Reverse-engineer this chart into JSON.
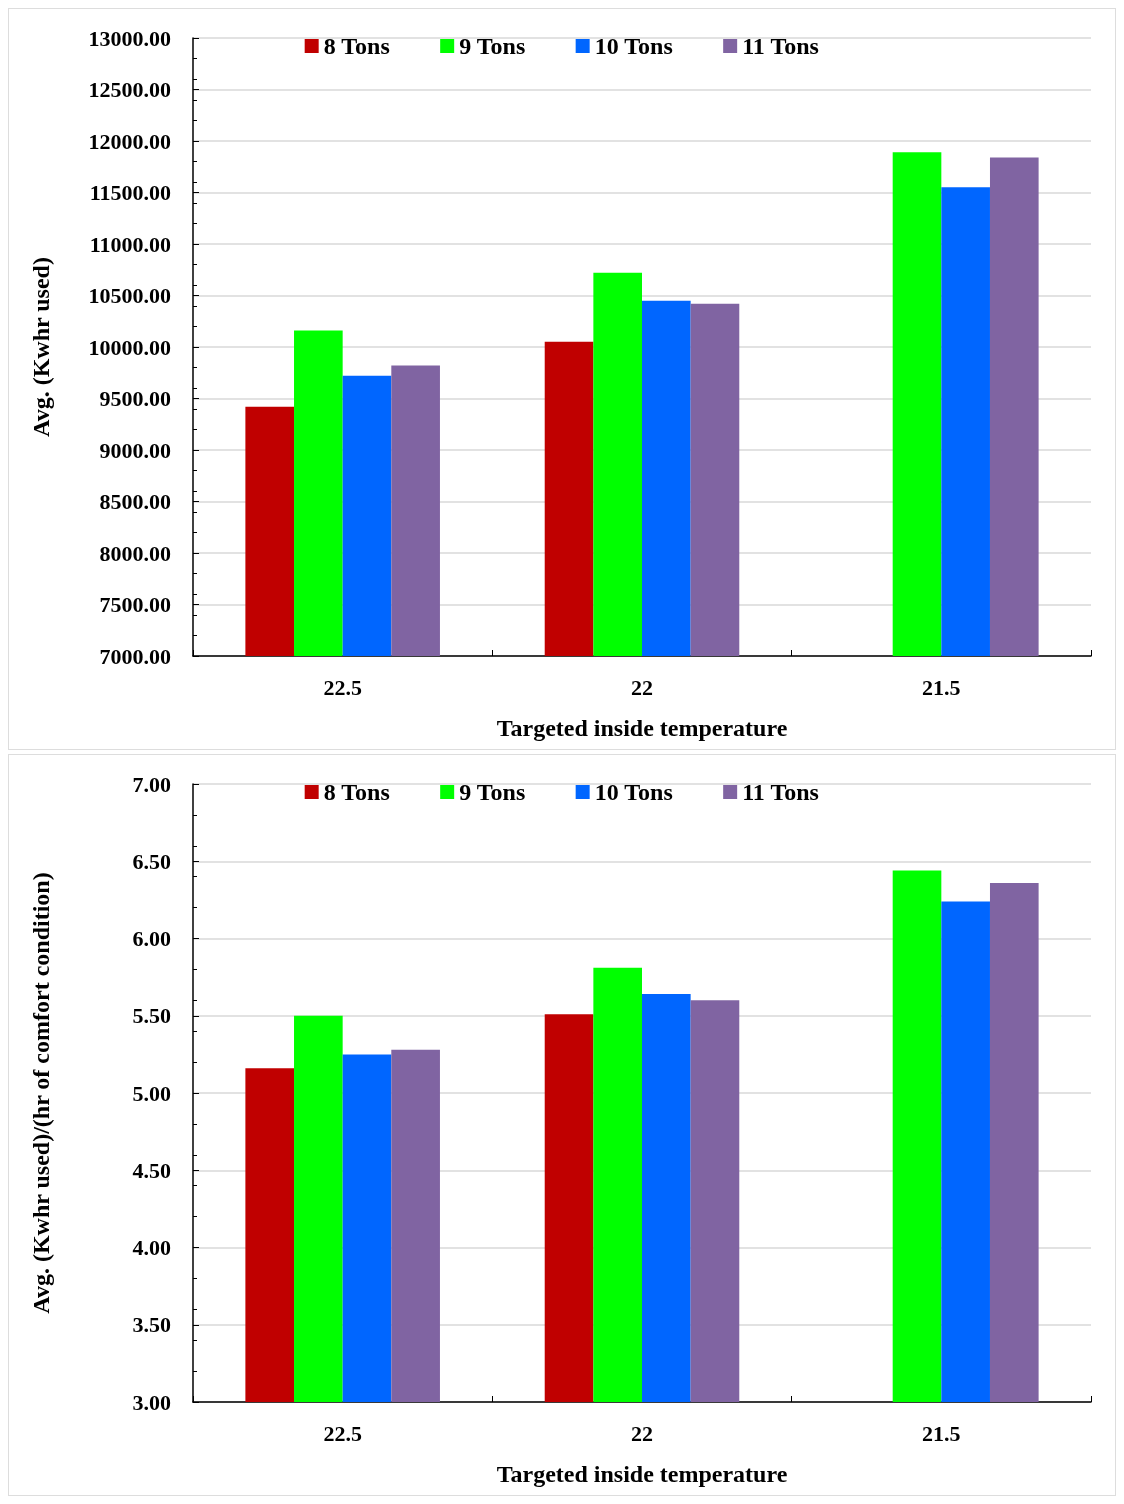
{
  "chart_data": [
    {
      "type": "bar",
      "xlabel": "Targeted inside temperature",
      "ylabel": "Avg. (Kwhr used)",
      "categories": [
        "22.5",
        "22",
        "21.5"
      ],
      "series": [
        {
          "name": "8 Tons",
          "color": "#c00000",
          "values": [
            9420,
            10050,
            null
          ]
        },
        {
          "name": "9 Tons",
          "color": "#00ff00",
          "values": [
            10160,
            10720,
            11890
          ]
        },
        {
          "name": "10 Tons",
          "color": "#0066ff",
          "values": [
            9720,
            10450,
            11550
          ]
        },
        {
          "name": "11 Tons",
          "color": "#8064a2",
          "values": [
            9820,
            10420,
            11840
          ]
        }
      ],
      "ylim": [
        7000,
        13000
      ],
      "yticks": [
        {
          "value": 7000,
          "label": "7000.00"
        },
        {
          "value": 7500,
          "label": "7500.00"
        },
        {
          "value": 8000,
          "label": "8000.00"
        },
        {
          "value": 8500,
          "label": "8500.00"
        },
        {
          "value": 9000,
          "label": "9000.00"
        },
        {
          "value": 9500,
          "label": "9500.00"
        },
        {
          "value": 10000,
          "label": "10000.00"
        },
        {
          "value": 10500,
          "label": "10500.00"
        },
        {
          "value": 11000,
          "label": "11000.00"
        },
        {
          "value": 11500,
          "label": "11500.00"
        },
        {
          "value": 12000,
          "label": "12000.00"
        },
        {
          "value": 12500,
          "label": "12500.00"
        },
        {
          "value": 13000,
          "label": "13000.00"
        }
      ],
      "grid": "y",
      "legend": "top"
    },
    {
      "type": "bar",
      "xlabel": "Targeted inside temperature",
      "ylabel": "Avg. (Kwhr used)/(hr of comfort condition)",
      "categories": [
        "22.5",
        "22",
        "21.5"
      ],
      "series": [
        {
          "name": "8 Tons",
          "color": "#c00000",
          "values": [
            5.16,
            5.51,
            null
          ]
        },
        {
          "name": "9 Tons",
          "color": "#00ff00",
          "values": [
            5.5,
            5.81,
            6.44
          ]
        },
        {
          "name": "10 Tons",
          "color": "#0066ff",
          "values": [
            5.25,
            5.64,
            6.24
          ]
        },
        {
          "name": "11 Tons",
          "color": "#8064a2",
          "values": [
            5.28,
            5.6,
            6.36
          ]
        }
      ],
      "ylim": [
        3,
        7
      ],
      "yticks": [
        {
          "value": 3,
          "label": "3.00"
        },
        {
          "value": 3.5,
          "label": "3.50"
        },
        {
          "value": 4,
          "label": "4.00"
        },
        {
          "value": 4.5,
          "label": "4.50"
        },
        {
          "value": 5,
          "label": "5.00"
        },
        {
          "value": 5.5,
          "label": "5.50"
        },
        {
          "value": 6,
          "label": "6.00"
        },
        {
          "value": 6.5,
          "label": "6.50"
        },
        {
          "value": 7,
          "label": "7.00"
        }
      ],
      "grid": "y",
      "legend": "top"
    }
  ]
}
